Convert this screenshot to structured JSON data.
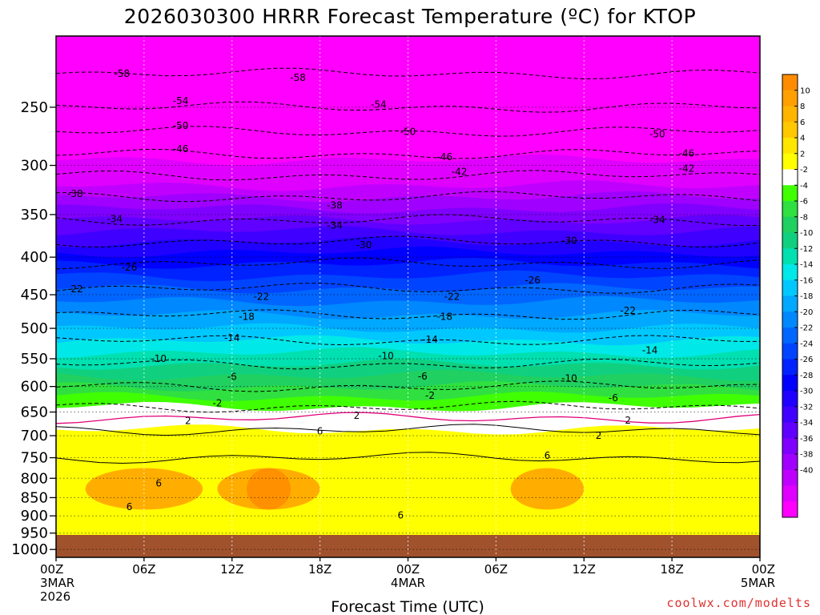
{
  "chart_data": {
    "type": "heatmap",
    "title": "2026030300 HRRR Forecast Temperature (ºC) for KTOP",
    "xlabel": "Forecast Time (UTC)",
    "ylabel": "",
    "credit": "coolwx.com/modelts",
    "x_ticks": [
      {
        "hour": 0,
        "label": "00Z",
        "sub1": "3MAR",
        "sub2": "2026"
      },
      {
        "hour": 6,
        "label": "06Z",
        "sub1": "",
        "sub2": ""
      },
      {
        "hour": 12,
        "label": "12Z",
        "sub1": "",
        "sub2": ""
      },
      {
        "hour": 18,
        "label": "18Z",
        "sub1": "",
        "sub2": ""
      },
      {
        "hour": 24,
        "label": "00Z",
        "sub1": "4MAR",
        "sub2": ""
      },
      {
        "hour": 30,
        "label": "06Z",
        "sub1": "",
        "sub2": ""
      },
      {
        "hour": 36,
        "label": "12Z",
        "sub1": "",
        "sub2": ""
      },
      {
        "hour": 42,
        "label": "18Z",
        "sub1": "",
        "sub2": ""
      },
      {
        "hour": 48,
        "label": "00Z",
        "sub1": "5MAR",
        "sub2": ""
      }
    ],
    "xlim": [
      0,
      48
    ],
    "y_ticks": [
      "250",
      "300",
      "350",
      "400",
      "450",
      "500",
      "550",
      "600",
      "650",
      "700",
      "750",
      "800",
      "850",
      "900",
      "950",
      "1000"
    ],
    "ylim": [
      1025,
      200
    ],
    "y_scale": "log-pressure",
    "temperature_profile": [
      {
        "p": 200,
        "t": -61
      },
      {
        "p": 225,
        "t": -58
      },
      {
        "p": 250,
        "t": -54
      },
      {
        "p": 275,
        "t": -49
      },
      {
        "p": 300,
        "t": -44
      },
      {
        "p": 325,
        "t": -39
      },
      {
        "p": 350,
        "t": -35
      },
      {
        "p": 375,
        "t": -31
      },
      {
        "p": 400,
        "t": -27
      },
      {
        "p": 450,
        "t": -21
      },
      {
        "p": 500,
        "t": -16
      },
      {
        "p": 550,
        "t": -11
      },
      {
        "p": 600,
        "t": -6
      },
      {
        "p": 650,
        "t": -1
      },
      {
        "p": 700,
        "t": 3
      },
      {
        "p": 750,
        "t": 6
      },
      {
        "p": 800,
        "t": 7
      },
      {
        "p": 850,
        "t": 7
      },
      {
        "p": 900,
        "t": 6
      },
      {
        "p": 950,
        "t": 4
      },
      {
        "p": 975,
        "t": 3
      }
    ],
    "contour_labels": [
      {
        "hour": 4.5,
        "p": 225,
        "label": "-58"
      },
      {
        "hour": 16.5,
        "p": 228,
        "label": "-58"
      },
      {
        "hour": 8.5,
        "p": 245,
        "label": "-54"
      },
      {
        "hour": 22,
        "p": 248,
        "label": "-54"
      },
      {
        "hour": 8.5,
        "p": 265,
        "label": "-50"
      },
      {
        "hour": 24,
        "p": 270,
        "label": "-50"
      },
      {
        "hour": 41,
        "p": 272,
        "label": "-50"
      },
      {
        "hour": 8.5,
        "p": 285,
        "label": "-46"
      },
      {
        "hour": 26.5,
        "p": 292,
        "label": "-46"
      },
      {
        "hour": 43,
        "p": 289,
        "label": "-46"
      },
      {
        "hour": 27.5,
        "p": 306,
        "label": "-42"
      },
      {
        "hour": 43,
        "p": 303,
        "label": "-42"
      },
      {
        "hour": 1.3,
        "p": 328,
        "label": "-38"
      },
      {
        "hour": 19,
        "p": 340,
        "label": "-38"
      },
      {
        "hour": 4,
        "p": 355,
        "label": "-34"
      },
      {
        "hour": 19,
        "p": 362,
        "label": "-34"
      },
      {
        "hour": 41,
        "p": 356,
        "label": "-34"
      },
      {
        "hour": 21,
        "p": 385,
        "label": "-30"
      },
      {
        "hour": 35,
        "p": 380,
        "label": "-30"
      },
      {
        "hour": 5,
        "p": 413,
        "label": "-26"
      },
      {
        "hour": 32.5,
        "p": 430,
        "label": "-26"
      },
      {
        "hour": 1.3,
        "p": 442,
        "label": "-22"
      },
      {
        "hour": 14,
        "p": 453,
        "label": "-22"
      },
      {
        "hour": 27,
        "p": 453,
        "label": "-22"
      },
      {
        "hour": 39,
        "p": 473,
        "label": "-22"
      },
      {
        "hour": 13,
        "p": 482,
        "label": "-18"
      },
      {
        "hour": 26.5,
        "p": 482,
        "label": "-18"
      },
      {
        "hour": 12,
        "p": 515,
        "label": "-14"
      },
      {
        "hour": 25.5,
        "p": 518,
        "label": "-14"
      },
      {
        "hour": 40.5,
        "p": 536,
        "label": "-14"
      },
      {
        "hour": 7,
        "p": 550,
        "label": "-10"
      },
      {
        "hour": 22.5,
        "p": 545,
        "label": "-10"
      },
      {
        "hour": 35,
        "p": 585,
        "label": "-10"
      },
      {
        "hour": 12,
        "p": 582,
        "label": "-6"
      },
      {
        "hour": 25,
        "p": 581,
        "label": "-6"
      },
      {
        "hour": 38,
        "p": 622,
        "label": "-6"
      },
      {
        "hour": 11,
        "p": 632,
        "label": "-2"
      },
      {
        "hour": 25.5,
        "p": 617,
        "label": "-2"
      },
      {
        "hour": 9,
        "p": 668,
        "label": "2"
      },
      {
        "hour": 20.5,
        "p": 657,
        "label": "2"
      },
      {
        "hour": 39,
        "p": 667,
        "label": "2"
      },
      {
        "hour": 37,
        "p": 700,
        "label": "2"
      },
      {
        "hour": 18,
        "p": 690,
        "label": "6"
      },
      {
        "hour": 33.5,
        "p": 745,
        "label": "6"
      },
      {
        "hour": 7,
        "p": 813,
        "label": "6"
      },
      {
        "hour": 5,
        "p": 875,
        "label": "6"
      },
      {
        "hour": 23.5,
        "p": 898,
        "label": "6"
      }
    ],
    "colorbar": {
      "labels": [
        "10",
        "8",
        "6",
        "4",
        "2",
        "-2",
        "-4",
        "-6",
        "-8",
        "-10",
        "-12",
        "-14",
        "-16",
        "-18",
        "-20",
        "-22",
        "-24",
        "-26",
        "-28",
        "-30",
        "-32",
        "-34",
        "-36",
        "-38",
        "-40"
      ],
      "colors": [
        "#ff8c00",
        "#ffa000",
        "#ffb400",
        "#ffc800",
        "#ffe600",
        "#ffff00",
        "#ffffff",
        "#40ff00",
        "#30e040",
        "#20d060",
        "#10d080",
        "#00e0b0",
        "#00e8e8",
        "#00c8ff",
        "#00a8ff",
        "#0088ff",
        "#0066ff",
        "#0044ff",
        "#0022ff",
        "#0000ff",
        "#2000ff",
        "#4000ff",
        "#6000ff",
        "#8000ff",
        "#a000ff",
        "#c000ff",
        "#e000ff",
        "#ff00ff"
      ]
    },
    "ground_color": "#a0522d",
    "grid": true
  }
}
